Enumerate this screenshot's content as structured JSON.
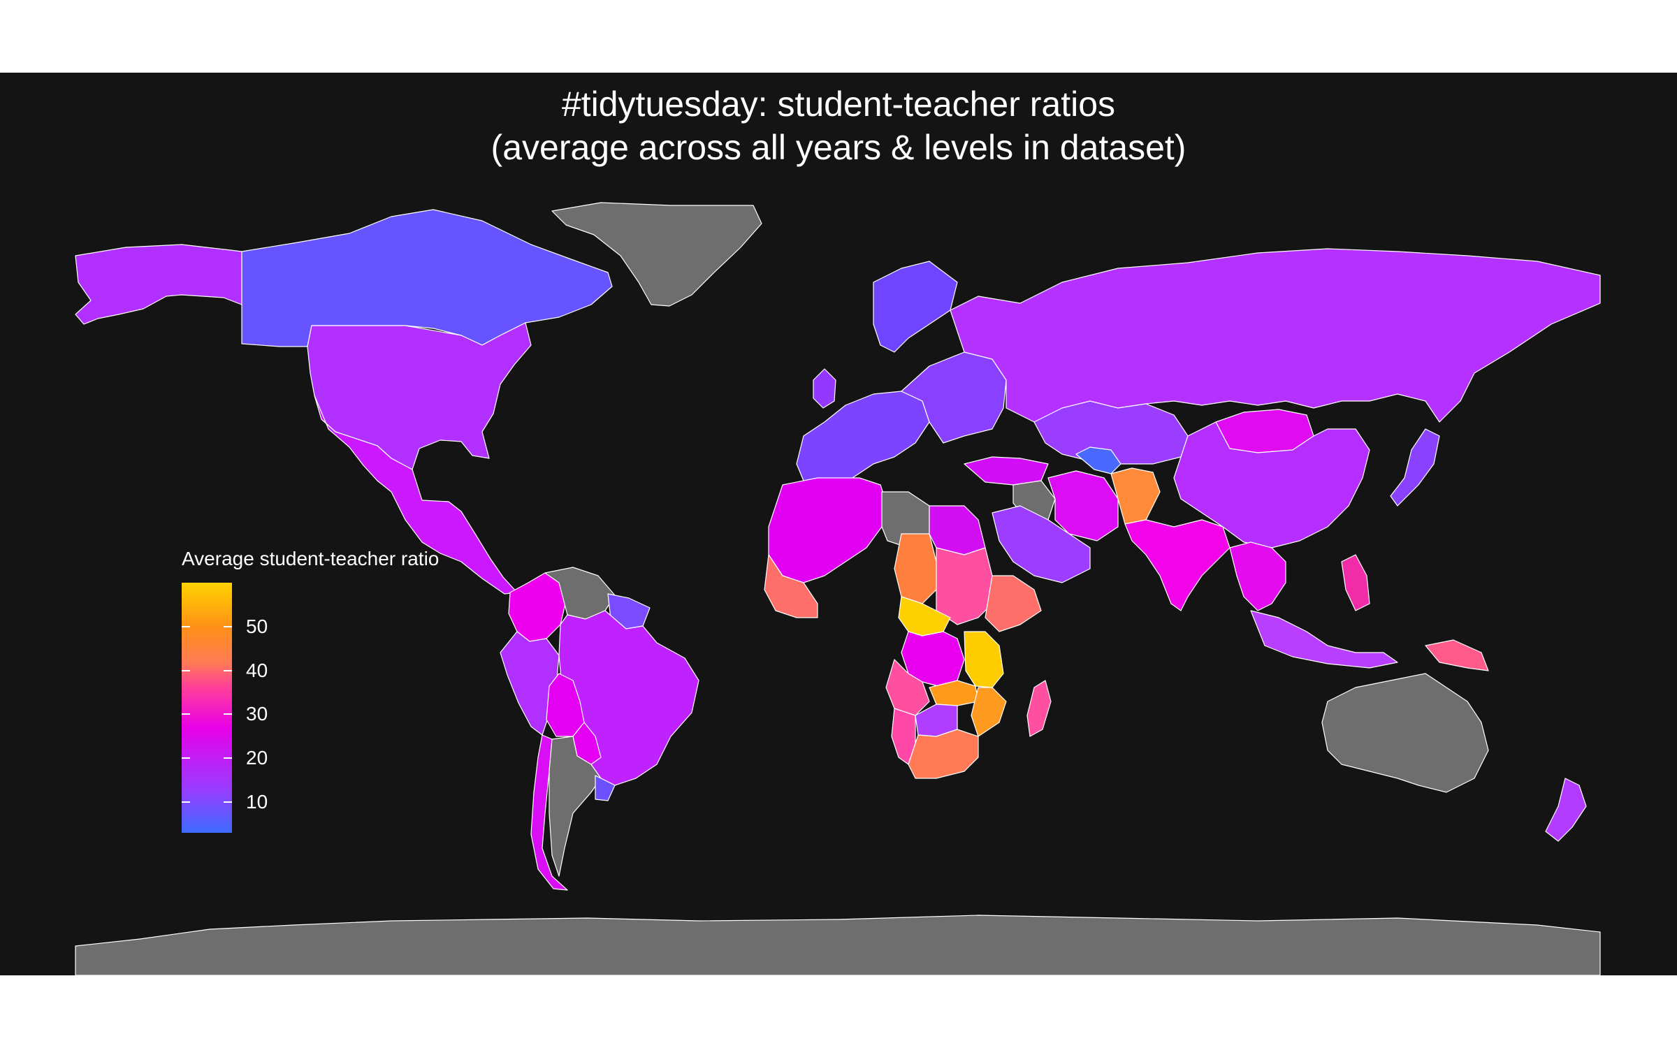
{
  "title": {
    "line1": "#tidytuesday: student-teacher ratios",
    "line2": "(average across all years & levels in dataset)"
  },
  "legend": {
    "title": "Average student-teacher ratio",
    "range": [
      3,
      60
    ],
    "ticks": [
      "10",
      "20",
      "30",
      "40",
      "50"
    ]
  },
  "colors": {
    "background": "#141414",
    "no_data": "#6e6e6e",
    "border": "#ffffff",
    "scale_low": "#3d6bff",
    "scale_10": "#9b3bff",
    "scale_20": "#e800e8",
    "scale_30": "#ff4f8f",
    "scale_40": "#ff8a30",
    "scale_high": "#ffd300"
  },
  "chart_data": {
    "type": "choropleth",
    "title": "#tidytuesday: student-teacher ratios (average across all years & levels in dataset)",
    "fill_variable": "Average student-teacher ratio",
    "scale_range": [
      3,
      60
    ],
    "regions": [
      {
        "region": "Canada",
        "value": 12
      },
      {
        "region": "Alaska",
        "value": 15
      },
      {
        "region": "Greenland",
        "value": null
      },
      {
        "region": "United States",
        "value": 15
      },
      {
        "region": "Mexico",
        "value": 22
      },
      {
        "region": "Central America",
        "value": 22
      },
      {
        "region": "Colombia",
        "value": 22
      },
      {
        "region": "Venezuela",
        "value": null
      },
      {
        "region": "Guianas",
        "value": 15
      },
      {
        "region": "Brazil",
        "value": 18
      },
      {
        "region": "Peru",
        "value": 17
      },
      {
        "region": "Bolivia",
        "value": 21
      },
      {
        "region": "Paraguay",
        "value": 23
      },
      {
        "region": "Chile",
        "value": 21
      },
      {
        "region": "Argentina",
        "value": null
      },
      {
        "region": "Uruguay",
        "value": 12
      },
      {
        "region": "Russia",
        "value": 15
      },
      {
        "region": "Scandinavia",
        "value": 11
      },
      {
        "region": "Western Europe",
        "value": 13
      },
      {
        "region": "Eastern Europe",
        "value": 13
      },
      {
        "region": "Kazakhstan",
        "value": 15
      },
      {
        "region": "Mongolia",
        "value": 24
      },
      {
        "region": "China",
        "value": 17
      },
      {
        "region": "Turkey",
        "value": 22
      },
      {
        "region": "Iran",
        "value": 20
      },
      {
        "region": "Afghanistan",
        "value": 42
      },
      {
        "region": "Uzbekistan",
        "value": 5
      },
      {
        "region": "Saudi Arabia",
        "value": 13
      },
      {
        "region": "Iraq",
        "value": null
      },
      {
        "region": "India",
        "value": 27
      },
      {
        "region": "Southeast Asia",
        "value": 25
      },
      {
        "region": "Japan",
        "value": 16
      },
      {
        "region": "Philippines",
        "value": 30
      },
      {
        "region": "Indonesia",
        "value": 20
      },
      {
        "region": "Papua New Guinea",
        "value": 35
      },
      {
        "region": "Australia",
        "value": null
      },
      {
        "region": "New Zealand",
        "value": 15
      },
      {
        "region": "Antarctica",
        "value": null
      },
      {
        "region": "North Africa",
        "value": 24
      },
      {
        "region": "Libya",
        "value": null
      },
      {
        "region": "Egypt",
        "value": 23
      },
      {
        "region": "West Africa",
        "value": 38
      },
      {
        "region": "Chad",
        "value": 40
      },
      {
        "region": "Sudan",
        "value": 32
      },
      {
        "region": "Ethiopia",
        "value": 38
      },
      {
        "region": "Central African Republic",
        "value": 57
      },
      {
        "region": "DR Congo",
        "value": 25
      },
      {
        "region": "Tanzania",
        "value": 48
      },
      {
        "region": "Malawi",
        "value": 58
      },
      {
        "region": "Angola",
        "value": 35
      },
      {
        "region": "Zambia",
        "value": 44
      },
      {
        "region": "Mozambique",
        "value": 48
      },
      {
        "region": "Namibia",
        "value": 30
      },
      {
        "region": "Botswana",
        "value": 18
      },
      {
        "region": "South Africa",
        "value": 35
      },
      {
        "region": "Madagascar",
        "value": 35
      }
    ]
  }
}
